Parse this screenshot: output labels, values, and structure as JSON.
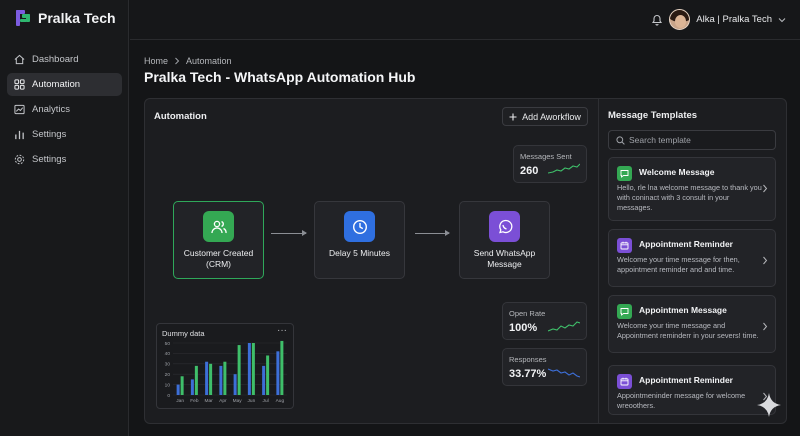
{
  "app": {
    "name": "Pralka Tech"
  },
  "sidebar": {
    "items": [
      {
        "label": "Dashboard",
        "icon": "dashboard-icon",
        "active": false
      },
      {
        "label": "Automation",
        "icon": "grid-icon",
        "active": true
      },
      {
        "label": "Analytics",
        "icon": "analytics-icon",
        "active": false
      },
      {
        "label": "Settings",
        "icon": "bar-chart-icon",
        "active": false
      },
      {
        "label": "Settings",
        "icon": "gear-icon",
        "active": false
      }
    ]
  },
  "header": {
    "user_label": "Alka | Pralka Tech"
  },
  "breadcrumb": {
    "home": "Home",
    "current": "Automation"
  },
  "page": {
    "title": "Pralka Tech - WhatsApp Automation Hub"
  },
  "automation": {
    "title": "Automation",
    "add_button": "Add Aworkflow",
    "nodes": [
      {
        "label": "Customer Created (CRM)",
        "icon": "users-icon",
        "color": "#34a853"
      },
      {
        "label": "Delay 5 Minutes",
        "icon": "clock-icon",
        "color": "#2f6fe0"
      },
      {
        "label": "Send WhatsApp Message",
        "icon": "whatsapp-icon",
        "color": "#7b4fd6"
      }
    ],
    "stats": {
      "messages_sent": {
        "label": "Messages Sent",
        "value": "260"
      },
      "open_rate": {
        "label": "Open Rate",
        "value": "100%"
      },
      "responses": {
        "label": "Responses",
        "value": "33.77%"
      }
    }
  },
  "chart_data": {
    "type": "bar",
    "title": "Dummy data",
    "categories": [
      "Jan",
      "Feb",
      "Mar",
      "Apr",
      "May",
      "Jun",
      "Jul",
      "Aug"
    ],
    "series": [
      {
        "values": [
          10,
          15,
          32,
          28,
          20,
          50,
          28,
          42
        ]
      },
      {
        "values": [
          18,
          28,
          30,
          32,
          48,
          50,
          38,
          52
        ]
      }
    ],
    "ylim": [
      0,
      50
    ],
    "yticks": [
      0,
      10,
      20,
      30,
      40,
      50
    ],
    "colors": [
      "#3d6fd8",
      "#3fbf6a"
    ]
  },
  "templates": {
    "title": "Message Templates",
    "search_placeholder": "Search template",
    "items": [
      {
        "name": "Welcome Message",
        "desc": "Hello, rle lna welcome message to thank you with coninact with 3 consult in your messages.",
        "icon": "message-icon",
        "color": "#34a853"
      },
      {
        "name": "Appointment Reminder",
        "desc": "Welcome your time message for then, appointment  reminder and and time.",
        "icon": "calendar-icon",
        "color": "#7b4fd6"
      },
      {
        "name": "Appointmen Message",
        "desc": "Welcome your time message and Appointment  reminderr in your severs! time.",
        "icon": "message-icon",
        "color": "#34a853"
      },
      {
        "name": "Appointment Reminder",
        "desc": "Appointmeninder message for welcome wreoothers.",
        "icon": "calendar-icon",
        "color": "#7b4fd6"
      }
    ]
  }
}
